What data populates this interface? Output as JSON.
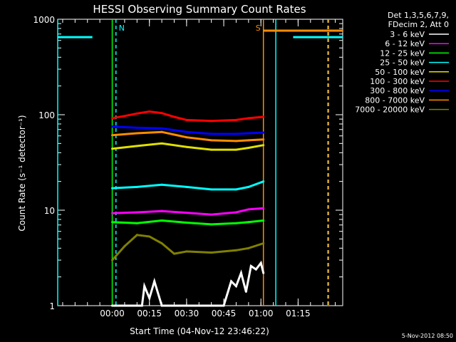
{
  "chart_data": {
    "type": "line",
    "title": "HESSI Observing Summary Count Rates",
    "xlabel": "Start Time (04-Nov-12 23:46:22)",
    "ylabel": "Count Rate (s⁻¹ detector⁻¹)",
    "y_scale": "log",
    "ylim": [
      1,
      1000
    ],
    "x_units": "minutes after 00:00",
    "xlim": [
      -22,
      93
    ],
    "x_ticks": [
      {
        "value": 0,
        "label": "00:00"
      },
      {
        "value": 15,
        "label": "00:15"
      },
      {
        "value": 30,
        "label": "00:30"
      },
      {
        "value": 45,
        "label": "00:45"
      },
      {
        "value": 60,
        "label": "01:00"
      },
      {
        "value": 75,
        "label": "01:15"
      }
    ],
    "y_ticks": [
      {
        "value": 1,
        "label": "1"
      },
      {
        "value": 10,
        "label": "10"
      },
      {
        "value": 100,
        "label": "100"
      },
      {
        "value": 1000,
        "label": "1000"
      }
    ],
    "legend": {
      "placement": "right",
      "header": [
        "Det 1,3,5,6,7,9,",
        "FDecim 2, Att 0"
      ]
    },
    "series": [
      {
        "name": "3 - 6 keV",
        "color": "#ffffff",
        "x": [
          0,
          12,
          13,
          15,
          17,
          20,
          45,
          48,
          50,
          52,
          54,
          56,
          58,
          60,
          61
        ],
        "values": [
          1,
          1,
          1.6,
          1.2,
          1.8,
          1,
          1,
          1.8,
          1.6,
          2.2,
          1.4,
          2.6,
          2.4,
          2.8,
          2.2
        ]
      },
      {
        "name": "6 - 12 keV",
        "color": "#ff00ff",
        "x": [
          0,
          10,
          20,
          30,
          40,
          50,
          55,
          61
        ],
        "values": [
          9.3,
          9.5,
          9.8,
          9.4,
          9.0,
          9.5,
          10.2,
          10.5
        ]
      },
      {
        "name": "12 - 25 keV",
        "color": "#00ff00",
        "x": [
          0,
          10,
          20,
          30,
          40,
          50,
          55,
          61
        ],
        "values": [
          7.5,
          7.3,
          7.8,
          7.4,
          7.1,
          7.3,
          7.5,
          7.8
        ]
      },
      {
        "name": "25 - 50 keV",
        "color": "#00ffff",
        "x": [
          0,
          10,
          20,
          30,
          40,
          50,
          55,
          61
        ],
        "values": [
          17,
          17.5,
          18.5,
          17.5,
          16.5,
          16.5,
          17.5,
          20
        ]
      },
      {
        "name": "50 - 100 keV",
        "color": "#e0e000",
        "x": [
          0,
          10,
          20,
          30,
          40,
          50,
          55,
          61
        ],
        "values": [
          44,
          47,
          50,
          46,
          43,
          43,
          45,
          48
        ]
      },
      {
        "name": "100 - 300 keV",
        "color": "#ff0000",
        "x": [
          0,
          5,
          10,
          15,
          20,
          25,
          30,
          40,
          50,
          55,
          61
        ],
        "values": [
          92,
          97,
          103,
          108,
          104,
          95,
          88,
          86,
          88,
          92,
          95
        ]
      },
      {
        "name": "300 - 800 keV",
        "color": "#0000ff",
        "x": [
          0,
          10,
          20,
          30,
          40,
          50,
          55,
          61
        ],
        "values": [
          75,
          73,
          72,
          66,
          63,
          63,
          64,
          65
        ]
      },
      {
        "name": "800 - 7000 keV",
        "color": "#ff8c00",
        "x": [
          0,
          10,
          20,
          30,
          40,
          50,
          55,
          61
        ],
        "values": [
          61,
          64,
          66,
          58,
          54,
          53,
          54,
          55
        ]
      },
      {
        "name": "7000 - 20000 keV",
        "color": "#808000",
        "x": [
          0,
          5,
          10,
          15,
          20,
          25,
          30,
          40,
          50,
          55,
          61
        ],
        "values": [
          3.0,
          4.2,
          5.5,
          5.3,
          4.5,
          3.5,
          3.7,
          3.6,
          3.8,
          4.0,
          4.5
        ]
      }
    ],
    "saa_flag": {
      "color": "#00ffff",
      "value": 650,
      "segments": [
        [
          -22,
          -8
        ],
        [
          73,
          93
        ]
      ]
    },
    "att_flag": {
      "color": "#ff8c00",
      "value": 760,
      "segments": [
        [
          61,
          93
        ]
      ]
    },
    "night_markers": [
      {
        "label": "N",
        "x": 1.5,
        "color": "#00ffff",
        "style": "dashed"
      },
      {
        "label": "S",
        "x": 61,
        "color": "#ff8c00",
        "style": "solid"
      }
    ],
    "extra_vlines": [
      {
        "x": -22,
        "color": "#00ffff",
        "style": "solid"
      },
      {
        "x": 0,
        "color": "#00ff00",
        "style": "solid"
      },
      {
        "x": 66,
        "color": "#00ffff",
        "style": "solid"
      },
      {
        "x": 87,
        "color": "#00ffff",
        "style": "dashed"
      },
      {
        "x": 87.3,
        "color": "#ff8c00",
        "style": "dashed"
      }
    ],
    "footer_date": "5-Nov-2012 08:50"
  }
}
